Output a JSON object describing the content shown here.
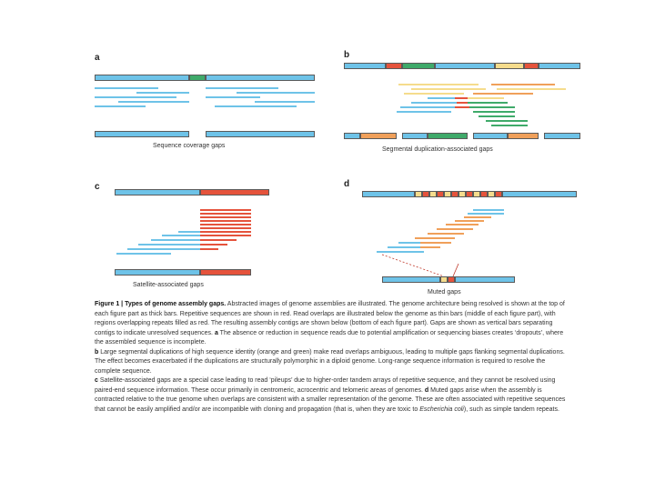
{
  "figure": {
    "panels": [
      {
        "letter": "a",
        "label": "Sequence coverage gaps"
      },
      {
        "letter": "b",
        "label": "Segmental duplication-associated gaps"
      },
      {
        "letter": "c",
        "label": "Satellite-associated gaps"
      },
      {
        "letter": "d",
        "label": "Muted gaps"
      }
    ],
    "colors": {
      "unique": "#6ec3e8",
      "repeat": "#e5533c",
      "gap_a": "#3faa6a",
      "sd_orange": "#f0a05a",
      "sd_yellow": "#f5dc8c"
    }
  },
  "caption": {
    "heading": "Figure 1 | Types of genome assembly gaps.",
    "intro": "Abstracted images of genome assemblies are illustrated. The genome architecture being resolved is shown at the top of each figure part as thick bars. Repetitive sequences are shown in red. Read overlaps are illustrated below the genome as thin bars (middle of each figure part), with regions overlapping repeats filled as red. The resulting assembly contigs are shown below (bottom of each figure part). Gaps are shown as vertical bars separating contigs to indicate unresolved sequences.",
    "a_label": "a",
    "a_text": "The absence or reduction in sequence reads due to potential amplification or sequencing biases creates ‘dropouts’, where the assembled sequence is incomplete.",
    "b_label": "b",
    "b_text": "Large segmental duplications of high sequence identity (orange and green) make read overlaps ambiguous, leading to multiple gaps flanking segmental duplications. The effect becomes exacerbated if the duplications are structurally polymorphic in a diploid genome. Long-range sequence information is required to resolve the complete sequence.",
    "c_label": "c",
    "c_text": "Satellite-associated gaps are a special case leading to read ‘pileups’ due to higher-order tandem arrays of repetitive sequence, and they cannot be resolved using paired-end sequence information. These occur primarily in centromeric, acrocentric and telomeric areas of genomes.",
    "d_label": "d",
    "d_text_1": "Muted gaps arise when the assembly is contracted relative to the true genome when overlaps are consistent with a smaller representation of the genome. These are often associated with repetitive sequences that cannot be easily amplified and/or are incompatible with cloning and propagation (that is, when they are toxic to",
    "d_italic": "Escherichia coli",
    "d_text_2": "), such as simple tandem repeats."
  }
}
